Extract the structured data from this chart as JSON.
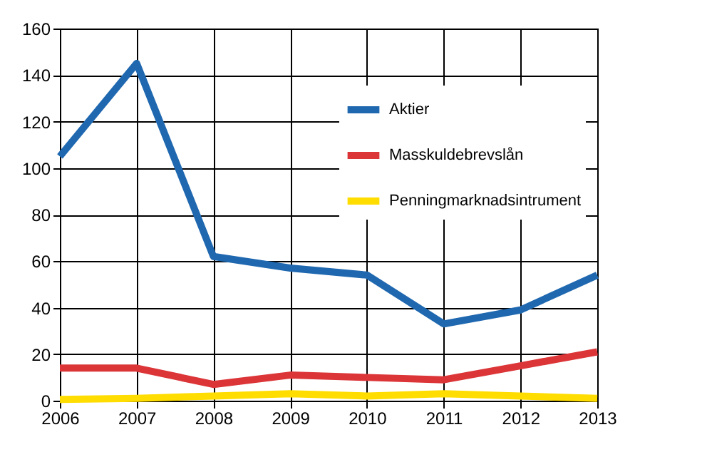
{
  "chart_data": {
    "type": "line",
    "x": [
      2006,
      2007,
      2008,
      2009,
      2010,
      2011,
      2012,
      2013
    ],
    "series": [
      {
        "name": "Aktier",
        "color": "#1f68b0",
        "values": [
          105,
          145,
          62,
          57,
          54,
          33,
          39,
          54
        ]
      },
      {
        "name": "Masskuldebrevslån",
        "color": "#dc3538",
        "values": [
          14,
          14,
          7,
          11,
          10,
          9,
          15,
          21
        ]
      },
      {
        "name": "Penningmarknadsintrument",
        "color": "#ffdd00",
        "values": [
          0.5,
          1,
          2,
          3,
          2,
          3,
          2,
          1
        ]
      }
    ],
    "xlim": [
      2006,
      2013
    ],
    "xticks": [
      2006,
      2007,
      2008,
      2009,
      2010,
      2011,
      2012,
      2013
    ],
    "ylim": [
      0,
      160
    ],
    "yticks": [
      0,
      20,
      40,
      60,
      80,
      100,
      120,
      140,
      160
    ],
    "grid": true,
    "legend": "top right",
    "marker": "none",
    "line_style": "solid"
  }
}
